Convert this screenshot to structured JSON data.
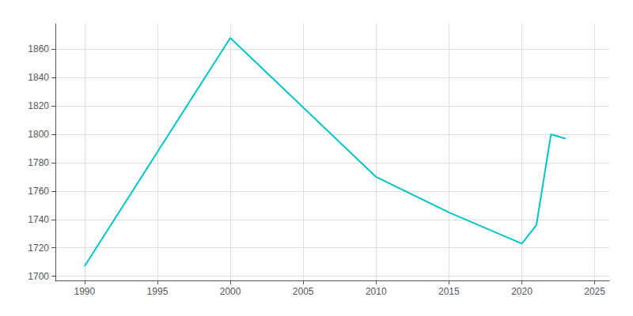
{
  "chart_data": {
    "type": "line",
    "x": [
      1990,
      2000,
      2010,
      2015,
      2020,
      2021,
      2022,
      2023
    ],
    "values": [
      1707,
      1868,
      1770,
      1745,
      1723,
      1736,
      1800,
      1797
    ],
    "color": "#00C5C8",
    "xlim": [
      1988,
      2026
    ],
    "ylim": [
      1697,
      1878
    ],
    "xticks": [
      1990,
      1995,
      2000,
      2005,
      2010,
      2015,
      2020,
      2025
    ],
    "yticks": [
      1700,
      1720,
      1740,
      1760,
      1780,
      1800,
      1820,
      1840,
      1860
    ],
    "grid": true
  }
}
